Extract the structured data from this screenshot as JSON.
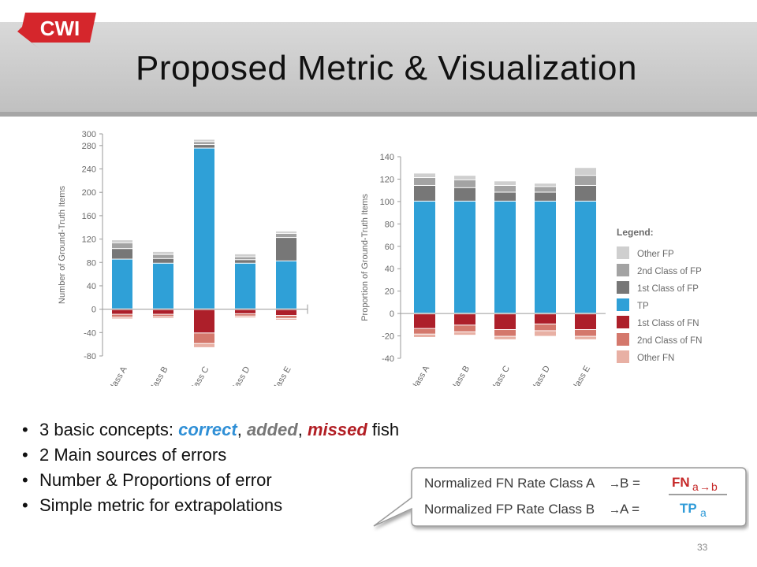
{
  "slide": {
    "logo_text": "CWI",
    "title": "Proposed Metric & Visualization",
    "page_number": "33"
  },
  "bullets": {
    "item1": {
      "prefix": "3 basic concepts: ",
      "correct": "correct",
      "sep1": ", ",
      "added": "added",
      "sep2": ", ",
      "missed": "missed",
      "suffix": " fish"
    },
    "item2": "2 Main sources of errors",
    "item3": "Number & Proportions of error",
    "item4": "Simple metric for extrapolations"
  },
  "callout": {
    "row1_label": "Normalized FN Rate Class A",
    "row1_tail": "B  =",
    "row2_label": "Normalized FP Rate Class B",
    "row2_tail": "A  =",
    "numerator": "FN",
    "numerator_sub": "a",
    "numerator_sub2": "b",
    "denominator": "TP",
    "denominator_sub": "a"
  },
  "colors": {
    "other_fp": "#cfcfcf",
    "second_fp": "#a3a3a3",
    "first_fp": "#777777",
    "tp": "#2fa0d7",
    "first_fn": "#ad1f2a",
    "second_fn": "#d4786c",
    "other_fn": "#e8b0a4",
    "callout_red": "#c62828",
    "callout_blue": "#2f9bd8"
  },
  "chart_data": [
    {
      "type": "bar",
      "stacked": true,
      "ylabel": "Number of Ground-Truth Items",
      "ylim": [
        -80,
        300
      ],
      "yticks": [
        300,
        280,
        240,
        200,
        160,
        120,
        80,
        40,
        0,
        -40,
        -80
      ],
      "categories": [
        "Class A",
        "Class B",
        "Class C",
        "Class D",
        "Class E"
      ],
      "series": [
        {
          "name": "TP",
          "values": [
            85,
            78,
            275,
            78,
            82
          ]
        },
        {
          "name": "1st Class of FP",
          "values": [
            18,
            8,
            6,
            6,
            40
          ]
        },
        {
          "name": "2nd Class of FP",
          "values": [
            10,
            7,
            5,
            5,
            7
          ]
        },
        {
          "name": "Other FP",
          "values": [
            5,
            5,
            4,
            5,
            4
          ]
        },
        {
          "name": "1st Class of FN",
          "values": [
            -8,
            -8,
            -40,
            -7,
            -10
          ]
        },
        {
          "name": "2nd Class of FN",
          "values": [
            -5,
            -4,
            -18,
            -4,
            -5
          ]
        },
        {
          "name": "Other FN",
          "values": [
            -3,
            -3,
            -7,
            -3,
            -3
          ]
        }
      ]
    },
    {
      "type": "bar",
      "stacked": true,
      "ylabel": "Proportion of Ground-Truth Items",
      "ylim": [
        -40,
        140
      ],
      "yticks": [
        140,
        120,
        100,
        80,
        60,
        40,
        20,
        0,
        -20,
        -40
      ],
      "categories": [
        "Class A",
        "Class B",
        "Class C",
        "Class D",
        "Class E"
      ],
      "legend_title": "Legend:",
      "legend_placement": "right",
      "series": [
        {
          "name": "TP",
          "values": [
            100,
            100,
            100,
            100,
            100
          ]
        },
        {
          "name": "1st Class of FP",
          "values": [
            14,
            12,
            8,
            8,
            14
          ]
        },
        {
          "name": "2nd Class of FP",
          "values": [
            7,
            7,
            6,
            5,
            9
          ]
        },
        {
          "name": "Other FP",
          "values": [
            4,
            4,
            4,
            3,
            7
          ]
        },
        {
          "name": "1st Class of FN",
          "values": [
            -13,
            -10,
            -14,
            -9,
            -14
          ]
        },
        {
          "name": "2nd Class of FN",
          "values": [
            -5,
            -6,
            -6,
            -6,
            -6
          ]
        },
        {
          "name": "Other FN",
          "values": [
            -3,
            -3,
            -3,
            -5,
            -3
          ]
        }
      ],
      "legend": [
        "Other FP",
        "2nd Class of FP",
        "1st Class of FP",
        "TP",
        "1st Class of FN",
        "2nd Class of FN",
        "Other FN"
      ]
    }
  ]
}
